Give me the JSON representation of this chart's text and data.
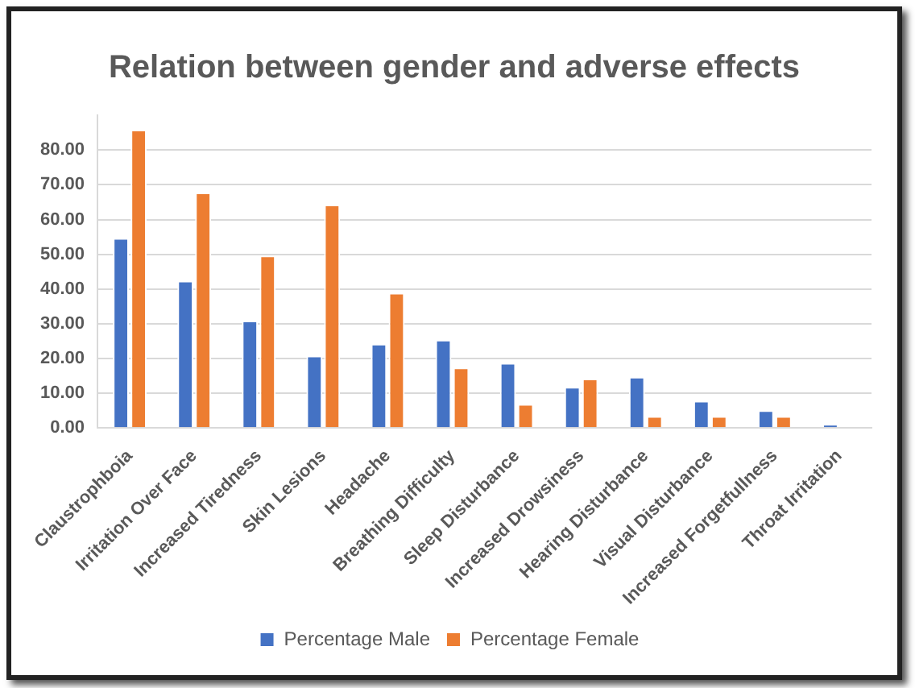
{
  "chart_data": {
    "type": "bar",
    "title": "Relation between gender and adverse effects",
    "categories": [
      "Claustrophboia",
      "Irritation Over Face",
      "Increased Tiredness",
      "Skin Lesions",
      "Headache",
      "Breathing Difficulty",
      "Sleep Disturbance",
      "Increased Drowsiness",
      "Hearing Disturbance",
      "Visual Disturbance",
      "Increased Forgetfullness",
      "Throat Irritation"
    ],
    "series": [
      {
        "name": "Percentage Male",
        "color": "#4472c4",
        "values": [
          54.7,
          42.4,
          30.9,
          20.8,
          24.2,
          25.4,
          18.7,
          11.8,
          14.7,
          7.8,
          5.1,
          1.1
        ]
      },
      {
        "name": "Percentage Female",
        "color": "#ed7d31",
        "values": [
          85.9,
          67.8,
          49.6,
          64.3,
          38.9,
          17.4,
          6.9,
          14.2,
          3.4,
          3.4,
          3.4,
          0
        ]
      }
    ],
    "ylim": [
      0,
      90
    ],
    "yticks": [
      {
        "value": 0,
        "label": "0.00"
      },
      {
        "value": 10,
        "label": "10.00"
      },
      {
        "value": 20,
        "label": "20.00"
      },
      {
        "value": 30,
        "label": "30.00"
      },
      {
        "value": 40,
        "label": "40.00"
      },
      {
        "value": 50,
        "label": "50.00"
      },
      {
        "value": 60,
        "label": "60.00"
      },
      {
        "value": 70,
        "label": "70.00"
      },
      {
        "value": 80,
        "label": "80.00"
      }
    ],
    "grid": "y",
    "legend": "bottom"
  }
}
